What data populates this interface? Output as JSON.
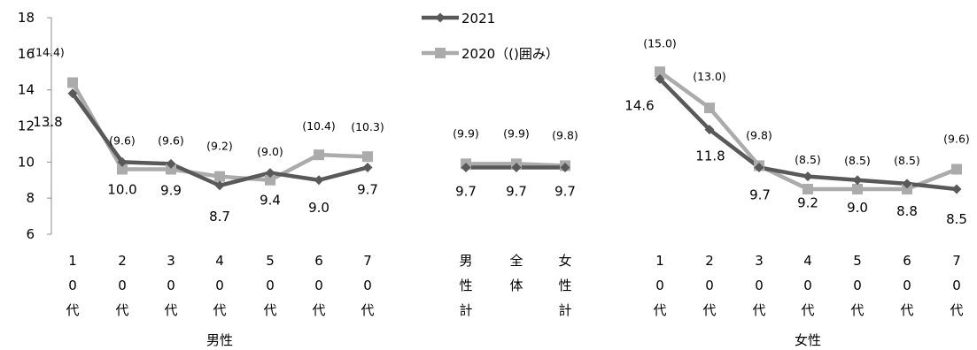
{
  "chart_data": {
    "type": "line",
    "ylim": [
      6,
      18
    ],
    "yticks": [
      "6",
      "8",
      "10",
      "12",
      "14",
      "16",
      "18"
    ],
    "legend": [
      {
        "label": "2021",
        "color": "#595959",
        "marker": "diamond"
      },
      {
        "label": "2020（()囲み）",
        "color": "#ababab",
        "marker": "square"
      }
    ],
    "groups": [
      {
        "label": "男性",
        "categories": [
          [
            "1",
            "0",
            "代"
          ],
          [
            "2",
            "0",
            "代"
          ],
          [
            "3",
            "0",
            "代"
          ],
          [
            "4",
            "0",
            "代"
          ],
          [
            "5",
            "0",
            "代"
          ],
          [
            "6",
            "0",
            "代"
          ],
          [
            "7",
            "0",
            "代"
          ]
        ],
        "series": [
          {
            "name": "2021",
            "values": [
              13.8,
              10.0,
              9.9,
              8.7,
              9.4,
              9.0,
              9.7
            ],
            "labels": [
              "13.8",
              "10.0",
              "9.9",
              "8.7",
              "9.4",
              "9.0",
              "9.7"
            ]
          },
          {
            "name": "2020（()囲み）",
            "values": [
              14.4,
              9.6,
              9.6,
              9.2,
              9.0,
              10.4,
              10.3
            ],
            "labels": [
              "(14.4)",
              "(9.6)",
              "(9.6)",
              "(9.2)",
              "(9.0)",
              "(10.4)",
              "(10.3)"
            ]
          }
        ]
      },
      {
        "label": "",
        "categories": [
          [
            "男",
            "性",
            "計"
          ],
          [
            "全",
            "体"
          ],
          [
            "女",
            "性",
            "計"
          ]
        ],
        "series": [
          {
            "name": "2021",
            "values": [
              9.7,
              9.7,
              9.7
            ],
            "labels": [
              "9.7",
              "9.7",
              "9.7"
            ]
          },
          {
            "name": "2020（()囲み）",
            "values": [
              9.9,
              9.9,
              9.8
            ],
            "labels": [
              "(9.9)",
              "(9.9)",
              "(9.8)"
            ]
          }
        ]
      },
      {
        "label": "女性",
        "categories": [
          [
            "1",
            "0",
            "代"
          ],
          [
            "2",
            "0",
            "代"
          ],
          [
            "3",
            "0",
            "代"
          ],
          [
            "4",
            "0",
            "代"
          ],
          [
            "5",
            "0",
            "代"
          ],
          [
            "6",
            "0",
            "代"
          ],
          [
            "7",
            "0",
            "代"
          ]
        ],
        "series": [
          {
            "name": "2021",
            "values": [
              14.6,
              11.8,
              9.7,
              9.2,
              9.0,
              8.8,
              8.5
            ],
            "labels": [
              "14.6",
              "11.8",
              "9.7",
              "9.2",
              "9.0",
              "8.8",
              "8.5"
            ]
          },
          {
            "name": "2020（()囲み）",
            "values": [
              15.0,
              13.0,
              9.8,
              8.5,
              8.5,
              8.5,
              9.6
            ],
            "labels": [
              "(15.0)",
              "(13.0)",
              "(9.8)",
              "(8.5)",
              "(8.5)",
              "(8.5)",
              "(9.6)"
            ]
          }
        ]
      }
    ]
  }
}
